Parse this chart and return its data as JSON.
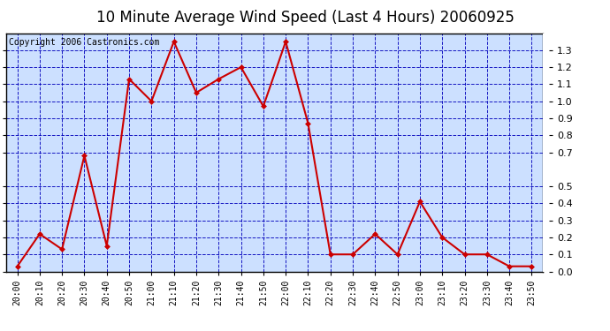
{
  "title": "10 Minute Average Wind Speed (Last 4 Hours) 20060925",
  "copyright": "Copyright 2006 Castronics.com",
  "x_labels": [
    "20:00",
    "20:10",
    "20:20",
    "20:30",
    "20:40",
    "20:50",
    "21:00",
    "21:10",
    "21:20",
    "21:30",
    "21:40",
    "21:50",
    "22:00",
    "22:10",
    "22:20",
    "22:30",
    "22:40",
    "22:50",
    "23:00",
    "23:10",
    "23:20",
    "23:30",
    "23:40",
    "23:50"
  ],
  "y_values": [
    0.03,
    0.22,
    0.13,
    0.68,
    0.15,
    1.13,
    1.0,
    1.35,
    1.05,
    1.13,
    1.2,
    0.97,
    1.35,
    0.87,
    0.1,
    0.1,
    0.22,
    0.1,
    0.41,
    0.2,
    0.1,
    0.1,
    0.03,
    0.03
  ],
  "line_color": "#cc0000",
  "marker_color": "#cc0000",
  "outer_bg_color": "#ffffff",
  "plot_bg_color": "#cce0ff",
  "grid_color": "#0000bb",
  "axis_color": "#000000",
  "text_color": "#000000",
  "ylim": [
    0.0,
    1.4
  ],
  "yticks": [
    0.0,
    0.1,
    0.2,
    0.3,
    0.4,
    0.5,
    0.7,
    0.8,
    0.9,
    1.0,
    1.1,
    1.2,
    1.3
  ],
  "title_fontsize": 12,
  "copyright_fontsize": 7,
  "tick_fontsize": 8,
  "xtick_fontsize": 7
}
